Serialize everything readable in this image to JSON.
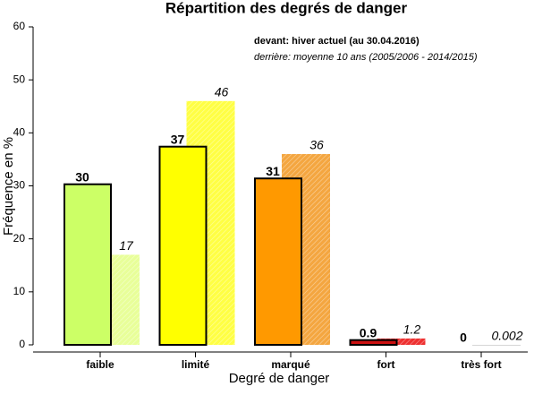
{
  "chart_data": {
    "type": "bar",
    "title": "Répartition des degrés de danger",
    "x_label": "Degré de danger",
    "y_label": "Fréquence en %",
    "categories": [
      "faible",
      "limité",
      "marqué",
      "fort",
      "très fort"
    ],
    "series": [
      {
        "name": "devant: hiver actuel (au 30.04.2016)",
        "colors": [
          "#ccff66",
          "#ffff00",
          "#ff9900",
          "#cc1111",
          "#000000"
        ],
        "values": [
          30.3,
          37.4,
          31.4,
          0.9,
          0
        ],
        "value_labels": [
          "30",
          "37",
          "31",
          "0.9",
          "0"
        ]
      },
      {
        "name": "derrière: moyenne 10 ans (2005/2006 - 2014/2015)",
        "colors": [
          "#e8ff99",
          "#ffff44",
          "#f4a640",
          "#ee3030",
          "#cccccc"
        ],
        "values": [
          17,
          46,
          36,
          1.2,
          0.002
        ]
      }
    ],
    "ylim": [
      0,
      60
    ],
    "yticks": [
      0,
      10,
      20,
      30,
      40,
      50,
      60
    ]
  }
}
